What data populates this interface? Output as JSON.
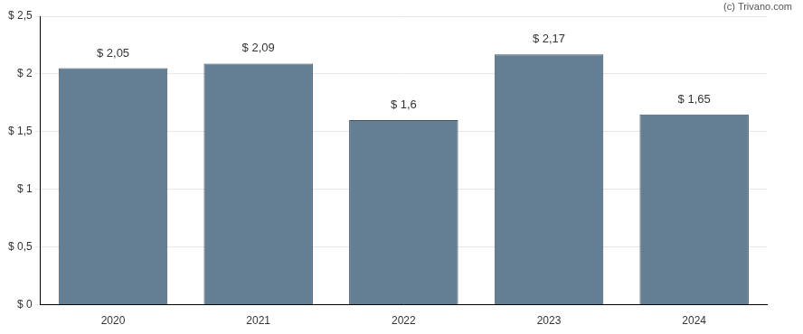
{
  "chart_data": {
    "type": "bar",
    "annotation": "(c) Trivano.com",
    "categories": [
      "2020",
      "2021",
      "2022",
      "2023",
      "2024"
    ],
    "values": [
      2.05,
      2.09,
      1.6,
      2.17,
      1.65
    ],
    "value_labels": [
      "$ 2,05",
      "$ 2,09",
      "$ 1,6",
      "$ 2,17",
      "$ 1,65"
    ],
    "data_labels": true,
    "color": "#647f94",
    "ylim": [
      0,
      2.5
    ],
    "yticks": [
      {
        "value": 0,
        "label": "$ 0"
      },
      {
        "value": 0.5,
        "label": "$ 0,5"
      },
      {
        "value": 1,
        "label": "$ 1"
      },
      {
        "value": 1.5,
        "label": "$ 1,5"
      },
      {
        "value": 2,
        "label": "$ 2"
      },
      {
        "value": 2.5,
        "label": "$ 2,5"
      }
    ],
    "grid": true
  }
}
